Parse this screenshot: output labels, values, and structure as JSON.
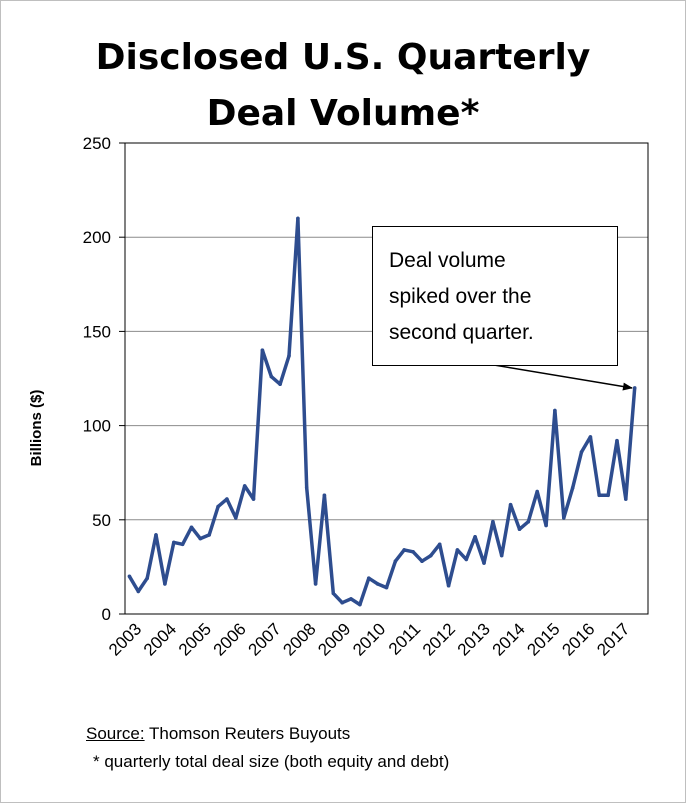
{
  "chart_data": {
    "type": "line",
    "title_line1": "Disclosed U.S. Quarterly",
    "title_line2": "Deal Volume*",
    "xlabel": "",
    "ylabel": "Billions ($)",
    "ylim": [
      0,
      250
    ],
    "yticks": [
      0,
      50,
      100,
      150,
      200,
      250
    ],
    "xtick_labels": [
      "2003",
      "2004",
      "2005",
      "2006",
      "2007",
      "2008",
      "2009",
      "2010",
      "2011",
      "2012",
      "2013",
      "2014",
      "2015",
      "2016",
      "2017"
    ],
    "grid": true,
    "color": "#2e4d8f",
    "series": [
      {
        "values": [
          20,
          12,
          19,
          42,
          16,
          38,
          37,
          46,
          40,
          42,
          57,
          61,
          51,
          68,
          61,
          140,
          126,
          122,
          137,
          210,
          67,
          16,
          63,
          11,
          6,
          8,
          5,
          19,
          16,
          14,
          28,
          34,
          33,
          28,
          31,
          37,
          15,
          34,
          29,
          41,
          27,
          49,
          31,
          58,
          45,
          49,
          65,
          47,
          108,
          51,
          67,
          86,
          94,
          63,
          63,
          92,
          61,
          120
        ]
      }
    ],
    "annotation": {
      "lines": [
        "Deal volume",
        "spiked over the",
        "second quarter."
      ]
    }
  },
  "footer": {
    "source_label": "Source:",
    "source_text": " Thomson Reuters Buyouts",
    "footnote": "* quarterly total deal size (both equity and debt)"
  }
}
